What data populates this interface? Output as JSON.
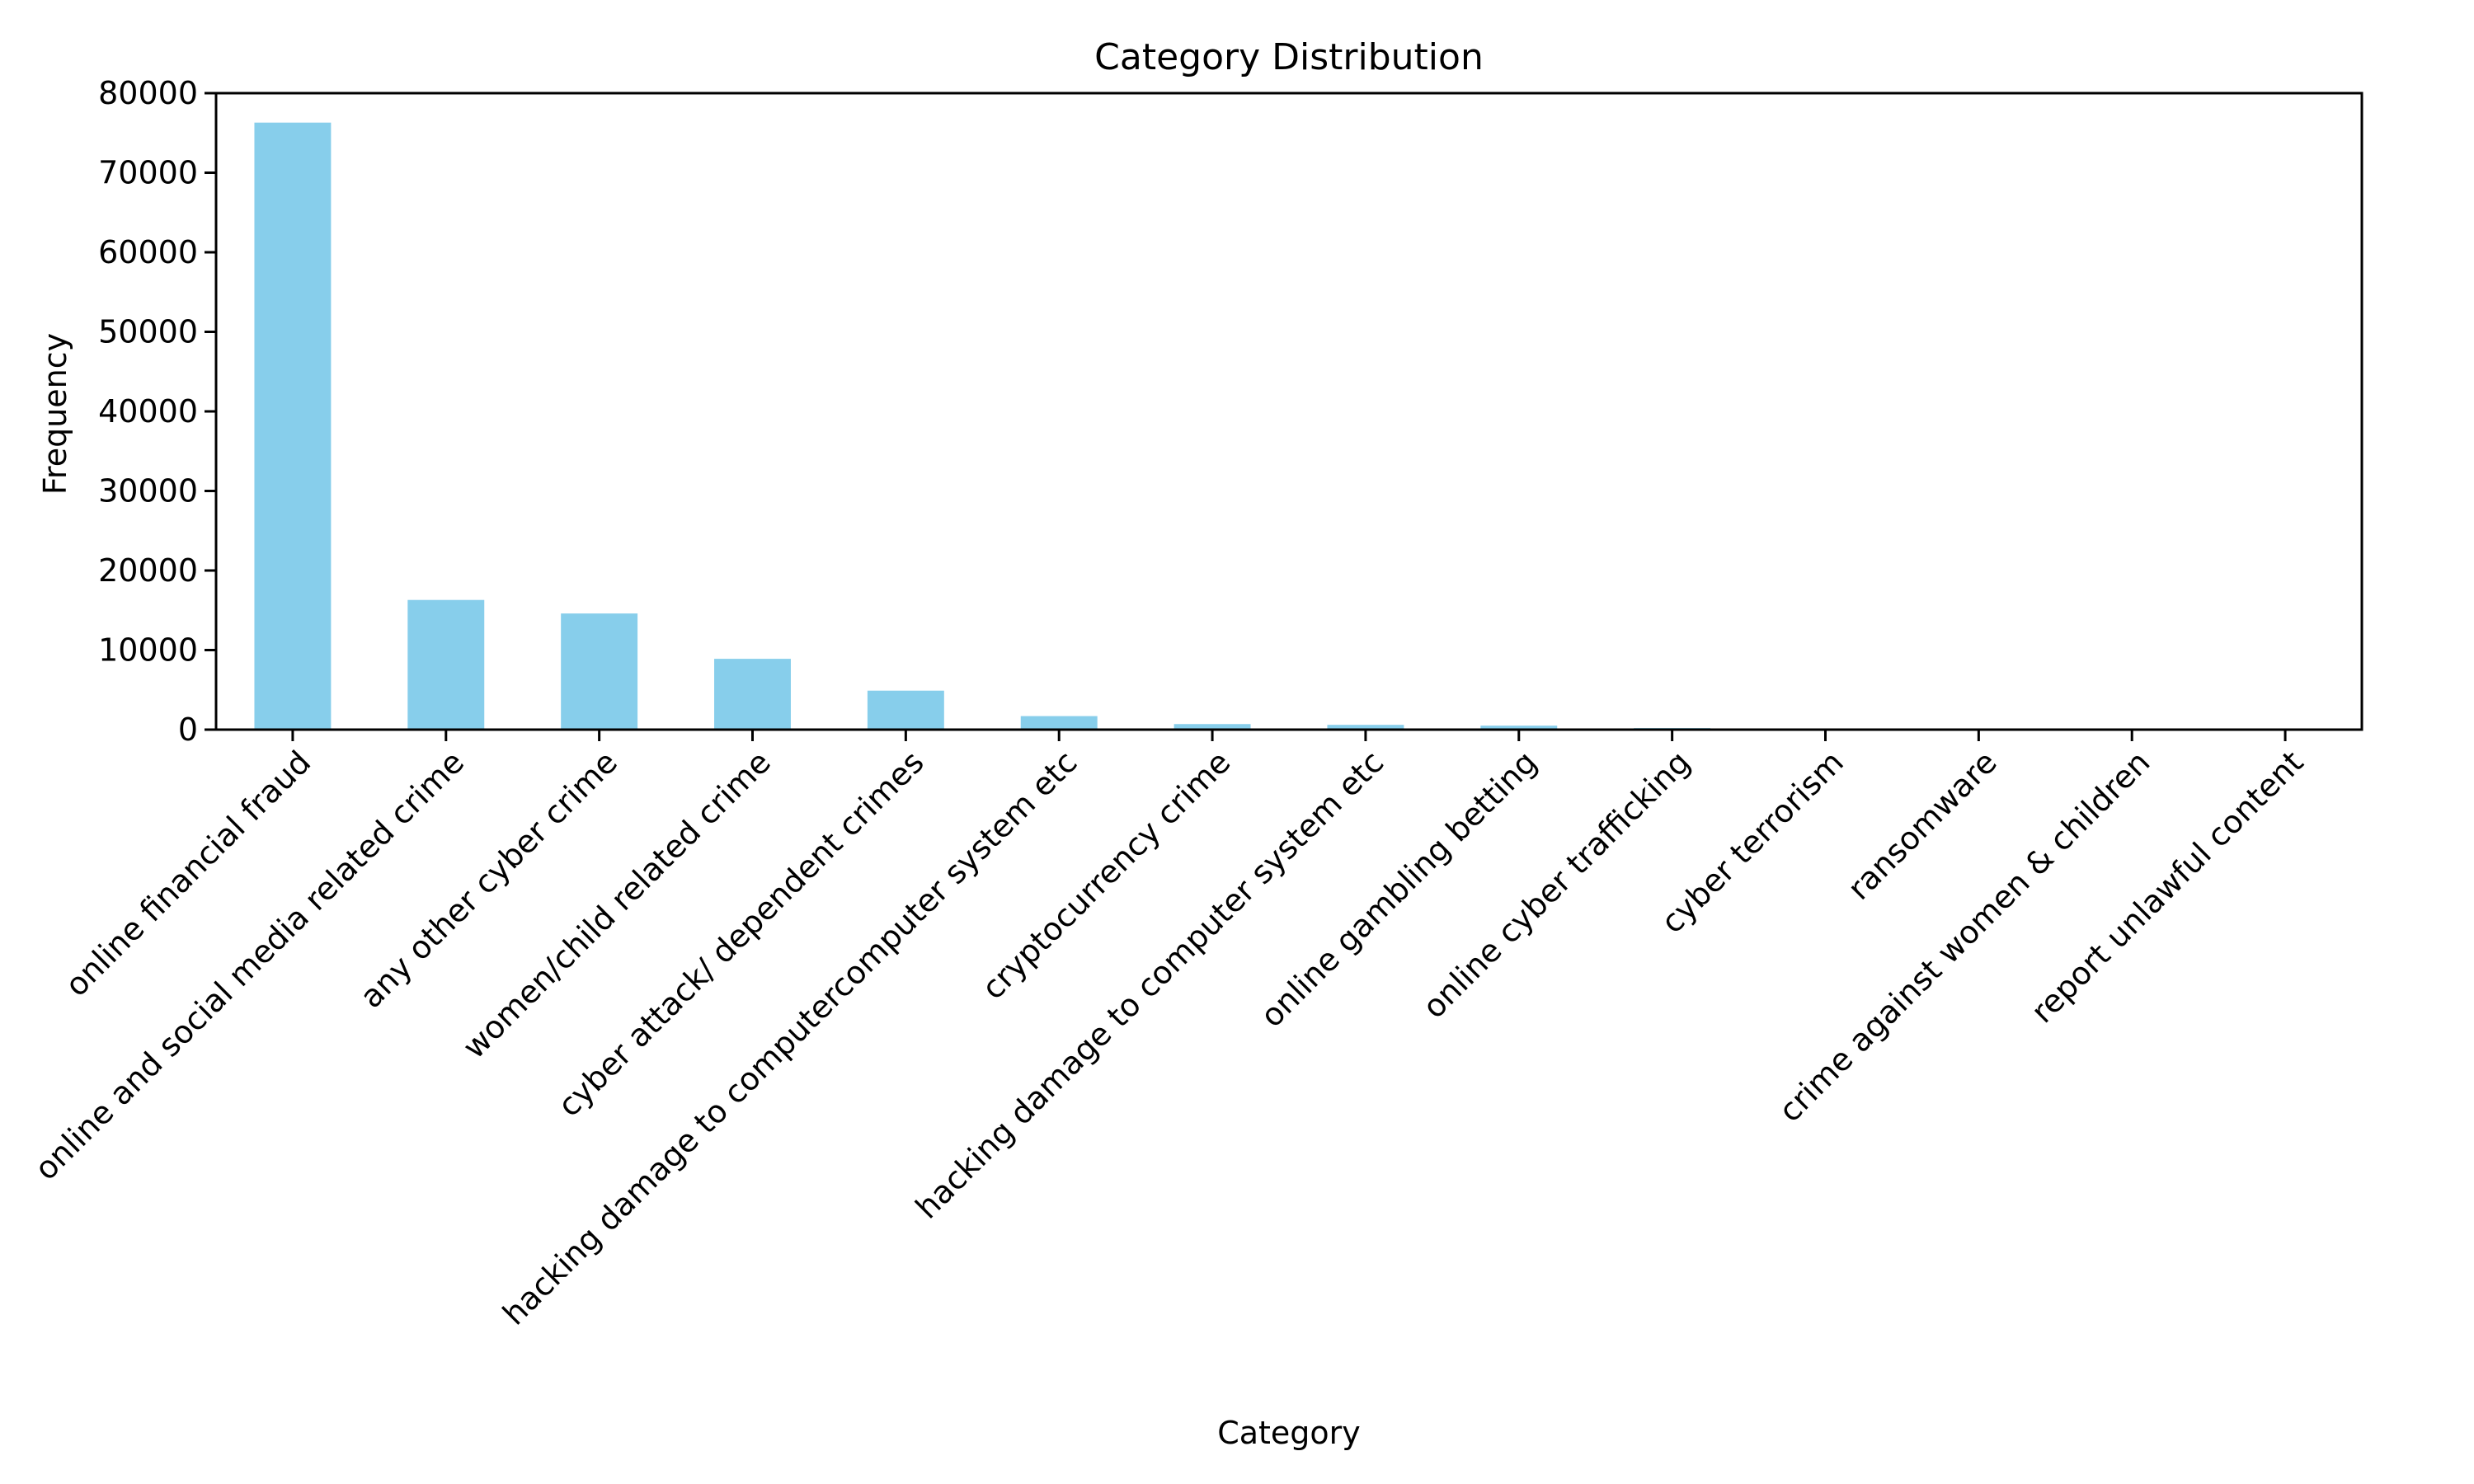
{
  "chart_data": {
    "type": "bar",
    "title": "Category Distribution",
    "xlabel": "Category",
    "ylabel": "Frequency",
    "ylim": [
      0,
      80000
    ],
    "yticks": [
      0,
      10000,
      20000,
      30000,
      40000,
      50000,
      60000,
      70000,
      80000
    ],
    "grid": false,
    "bar_color": "#87CEEB",
    "categories": [
      "online financial fraud",
      "online and social media related crime",
      "any other cyber crime",
      "women/child related crime",
      "cyber attack/ dependent crimes",
      "hacking  damage to computercomputer system etc",
      "cryptocurrency crime",
      "hacking  damage to computer system etc",
      "online gambling  betting",
      "online cyber trafficking",
      "cyber terrorism",
      "ransomware",
      "crime against women & children",
      "report unlawful content"
    ],
    "values": [
      76300,
      16300,
      14600,
      8900,
      4900,
      1700,
      700,
      600,
      500,
      200,
      100,
      50,
      5,
      1
    ]
  }
}
